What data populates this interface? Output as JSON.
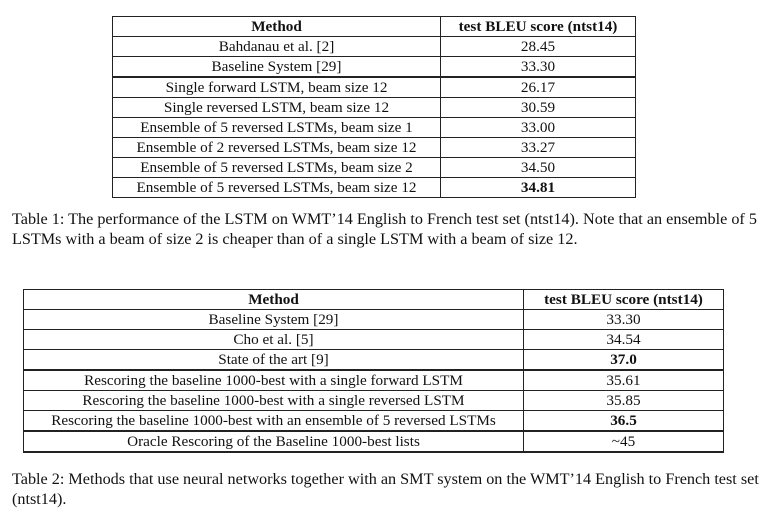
{
  "table1": {
    "headers": [
      "Method",
      "test BLEU score (ntst14)"
    ],
    "group1": [
      {
        "method": "Bahdanau et al. [2]",
        "score": "28.45",
        "bold": false
      },
      {
        "method": "Baseline System [29]",
        "score": "33.30",
        "bold": false
      }
    ],
    "group2": [
      {
        "method": "Single forward LSTM, beam size 12",
        "score": "26.17",
        "bold": false
      },
      {
        "method": "Single reversed LSTM, beam size 12",
        "score": "30.59",
        "bold": false
      },
      {
        "method": "Ensemble of 5 reversed LSTMs, beam size 1",
        "score": "33.00",
        "bold": false
      },
      {
        "method": "Ensemble of 2 reversed LSTMs, beam size 12",
        "score": "33.27",
        "bold": false
      },
      {
        "method": "Ensemble of 5 reversed LSTMs, beam size 2",
        "score": "34.50",
        "bold": false
      },
      {
        "method": "Ensemble of 5 reversed LSTMs, beam size 12",
        "score": "34.81",
        "bold": true
      }
    ],
    "caption": "Table 1: The performance of the LSTM on WMT’14 English to French test set (ntst14). Note that an ensemble of 5 LSTMs with a beam of size 2 is cheaper than of a single LSTM with a beam of size 12."
  },
  "table2": {
    "headers": [
      "Method",
      "test BLEU score (ntst14)"
    ],
    "group1": [
      {
        "method": "Baseline System [29]",
        "score": "33.30",
        "bold": false
      },
      {
        "method": "Cho et al. [5]",
        "score": "34.54",
        "bold": false
      },
      {
        "method": "State of the art [9]",
        "score": "37.0",
        "bold": true
      }
    ],
    "group2": [
      {
        "method": "Rescoring the baseline 1000-best with a single forward LSTM",
        "score": "35.61",
        "bold": false
      },
      {
        "method": "Rescoring the baseline 1000-best with a single reversed LSTM",
        "score": "35.85",
        "bold": false
      },
      {
        "method": "Rescoring the baseline 1000-best with an ensemble of 5 reversed LSTMs",
        "score": "36.5",
        "bold": true
      }
    ],
    "group3": [
      {
        "method": "Oracle Rescoring of the Baseline 1000-best lists",
        "score": "~45",
        "bold": false
      }
    ],
    "caption": "Table 2: Methods that use neural networks together with an SMT system on the WMT’14 English to French test set (ntst14)."
  }
}
